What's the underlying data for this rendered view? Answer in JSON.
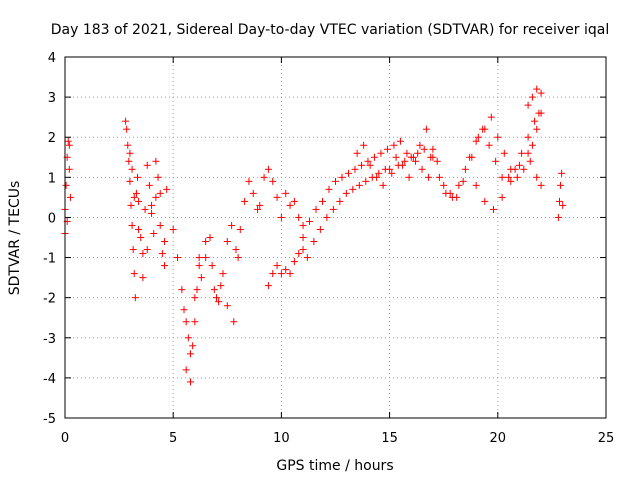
{
  "chart_data": {
    "type": "scatter",
    "title": "Day 183 of 2021, Sidereal Day-to-day VTEC variation (SDTVAR) for receiver iqal",
    "xlabel": "GPS time / hours",
    "ylabel": "SDTVAR / TECUs",
    "xlim": [
      0,
      25
    ],
    "ylim": [
      -5,
      4
    ],
    "grid": true,
    "marker": "+",
    "marker_color": "#ff0000",
    "x_ticks": [
      "0",
      "5",
      "10",
      "15",
      "20",
      "25"
    ],
    "y_ticks": [
      "-5",
      "-4",
      "-3",
      "-2",
      "-1",
      "0",
      "1",
      "2",
      "3",
      "4"
    ],
    "series": [
      {
        "name": "SDTVAR iqal",
        "x": [
          0.0,
          0.05,
          0.1,
          0.15,
          0.2,
          0.25,
          0.0,
          0.1,
          0.2,
          2.8,
          2.85,
          2.9,
          2.95,
          3.0,
          3.05,
          3.1,
          3.15,
          3.2,
          3.25,
          3.3,
          3.35,
          3.4,
          3.5,
          3.6,
          3.7,
          3.8,
          3.9,
          4.0,
          4.1,
          4.2,
          4.3,
          4.4,
          4.5,
          4.6,
          4.7,
          3.0,
          3.1,
          3.2,
          3.4,
          3.6,
          3.8,
          4.0,
          4.2,
          4.4,
          4.6,
          5.0,
          5.2,
          5.4,
          5.5,
          5.6,
          5.7,
          5.8,
          5.9,
          6.0,
          6.1,
          6.2,
          6.3,
          6.5,
          6.7,
          6.9,
          7.1,
          7.3,
          7.5,
          7.7,
          7.9,
          8.1,
          8.3,
          8.5,
          8.7,
          8.9,
          5.6,
          5.8,
          6.0,
          6.2,
          6.5,
          6.8,
          7.0,
          7.2,
          7.5,
          7.8,
          8.0,
          9.0,
          9.2,
          9.4,
          9.6,
          9.8,
          10.0,
          10.2,
          10.4,
          10.6,
          10.8,
          11.0,
          9.4,
          9.6,
          9.8,
          10.0,
          10.2,
          10.4,
          10.6,
          10.8,
          11.0,
          11.0,
          11.3,
          11.6,
          11.9,
          12.2,
          12.5,
          12.8,
          13.1,
          13.4,
          13.7,
          14.0,
          14.3,
          14.6,
          14.9,
          15.2,
          15.5,
          15.8,
          16.1,
          16.4,
          16.7,
          17.0,
          11.2,
          11.5,
          11.8,
          12.1,
          12.4,
          12.7,
          13.0,
          13.3,
          13.6,
          13.9,
          14.2,
          14.5,
          14.8,
          15.1,
          15.4,
          15.7,
          16.0,
          16.3,
          16.6,
          16.9,
          13.5,
          13.8,
          14.1,
          14.4,
          14.7,
          15.0,
          15.3,
          15.6,
          15.9,
          16.2,
          16.5,
          16.8,
          17.0,
          17.3,
          17.6,
          17.9,
          18.2,
          18.5,
          18.8,
          19.1,
          19.4,
          19.7,
          20.0,
          20.3,
          20.6,
          20.9,
          21.2,
          21.5,
          21.8,
          22.0,
          17.2,
          17.5,
          17.8,
          18.1,
          18.4,
          18.7,
          19.0,
          19.3,
          19.6,
          19.9,
          20.2,
          20.5,
          20.8,
          21.1,
          21.4,
          21.7,
          22.0,
          19.0,
          19.4,
          19.8,
          20.2,
          20.6,
          21.0,
          21.4,
          21.6,
          21.8,
          21.9,
          21.4,
          21.6,
          21.8,
          22.0,
          22.8,
          22.85,
          22.9,
          22.95,
          23.0
        ],
        "y": [
          0.2,
          0.8,
          1.5,
          1.9,
          1.2,
          0.5,
          -0.4,
          -0.1,
          1.8,
          2.4,
          2.2,
          1.8,
          1.4,
          0.9,
          0.3,
          -0.2,
          -0.8,
          -1.4,
          -2.0,
          0.6,
          1.0,
          0.4,
          -0.5,
          -0.9,
          0.2,
          1.3,
          0.8,
          0.1,
          -0.4,
          0.5,
          1.0,
          -0.2,
          -0.9,
          -1.2,
          0.7,
          1.6,
          1.2,
          0.5,
          -0.3,
          -1.5,
          -0.8,
          0.3,
          1.4,
          0.6,
          -0.6,
          -0.3,
          -1.0,
          -1.8,
          -2.3,
          -2.6,
          -3.0,
          -3.4,
          -3.2,
          -2.6,
          -1.8,
          -1.2,
          -1.5,
          -1.0,
          -0.5,
          -1.8,
          -2.1,
          -1.4,
          -0.6,
          -0.2,
          -0.8,
          -0.3,
          0.4,
          0.9,
          0.6,
          0.2,
          -3.8,
          -4.1,
          -2.0,
          -1.0,
          -0.6,
          -1.2,
          -2.0,
          -1.7,
          -2.2,
          -2.6,
          -1.0,
          0.3,
          1.0,
          1.2,
          0.9,
          0.5,
          0.0,
          0.6,
          0.3,
          0.4,
          0.0,
          -0.2,
          -1.7,
          -1.4,
          -1.2,
          -1.4,
          -1.3,
          -1.4,
          -1.1,
          -0.9,
          -0.8,
          -0.5,
          -0.1,
          0.2,
          0.4,
          0.7,
          0.9,
          1.0,
          1.1,
          1.2,
          1.3,
          1.4,
          1.5,
          1.6,
          1.7,
          1.8,
          1.9,
          1.6,
          1.5,
          1.8,
          2.2,
          1.7,
          -1.0,
          -0.6,
          -0.3,
          0.0,
          0.2,
          0.4,
          0.6,
          0.7,
          0.8,
          0.9,
          1.0,
          1.1,
          1.2,
          1.1,
          1.3,
          1.4,
          1.5,
          1.6,
          1.7,
          1.5,
          1.6,
          1.8,
          1.3,
          1.0,
          0.8,
          1.2,
          1.5,
          1.3,
          1.0,
          1.4,
          1.2,
          1.0,
          1.5,
          1.0,
          0.6,
          0.5,
          0.8,
          1.2,
          1.5,
          2.0,
          2.2,
          2.5,
          2.0,
          1.6,
          1.2,
          1.0,
          1.2,
          1.4,
          1.0,
          0.8,
          1.4,
          0.8,
          0.6,
          0.5,
          0.9,
          1.5,
          1.9,
          2.2,
          1.8,
          1.4,
          1.0,
          1.0,
          1.2,
          1.6,
          2.0,
          2.4,
          2.6,
          0.8,
          0.4,
          0.2,
          0.5,
          0.9,
          1.3,
          1.6,
          1.8,
          2.2,
          2.6,
          2.8,
          3.0,
          3.2,
          3.1,
          0.0,
          0.4,
          0.8,
          1.1,
          0.3
        ]
      }
    ]
  }
}
